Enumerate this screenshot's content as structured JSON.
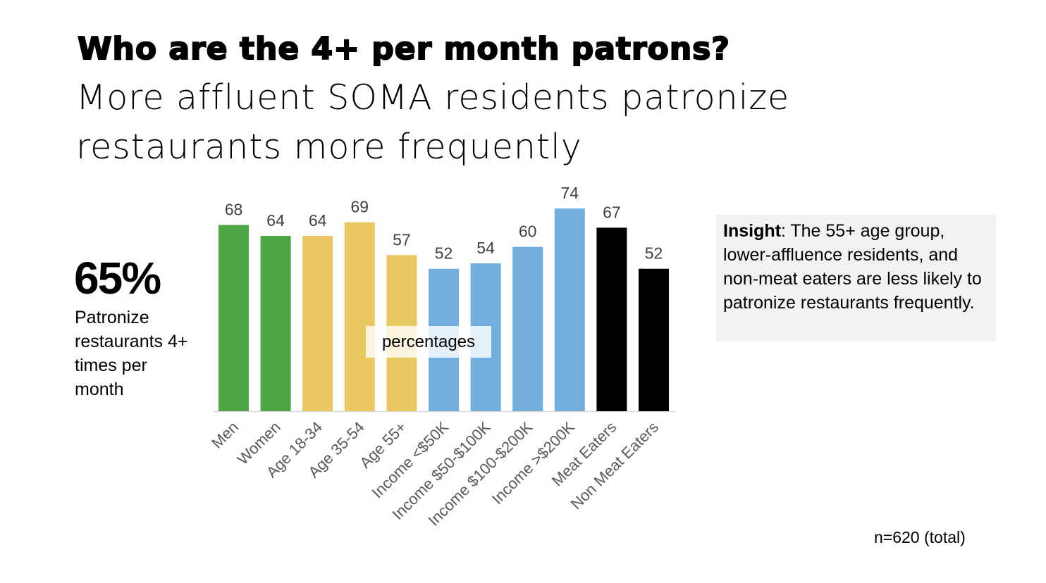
{
  "title": "Who are the 4+ per month patrons?",
  "subtitle": "More affluent SOMA residents patronize restaurants more frequently",
  "stat": {
    "value": "65%",
    "description": "Patronize restaurants 4+ times per month"
  },
  "insight": {
    "label": "Insight",
    "text": ": The 55+ age group, lower-affluence residents, and non-meat eaters are less likely to patronize restaurants frequently."
  },
  "note": "n=620 (total)",
  "chart_data": {
    "type": "bar",
    "ylabel": "percentages",
    "xlabel": "",
    "ylim": [
      0,
      74
    ],
    "grid": false,
    "categories": [
      "Men",
      "Women",
      "Age 18-34",
      "Age 35-54",
      "Age 55+",
      "Income <$50K",
      "Income $50-$100K",
      "Income $100-$200K",
      "Income >$200K",
      "Meat Eaters",
      "Non Meat Eaters"
    ],
    "values": [
      68,
      64,
      64,
      69,
      57,
      52,
      54,
      60,
      74,
      67,
      52
    ],
    "colors": [
      "#4ea645",
      "#4ea645",
      "#e9c862",
      "#e9c862",
      "#e9c862",
      "#73afde",
      "#73afde",
      "#73afde",
      "#73afde",
      "#000000",
      "#000000"
    ]
  }
}
